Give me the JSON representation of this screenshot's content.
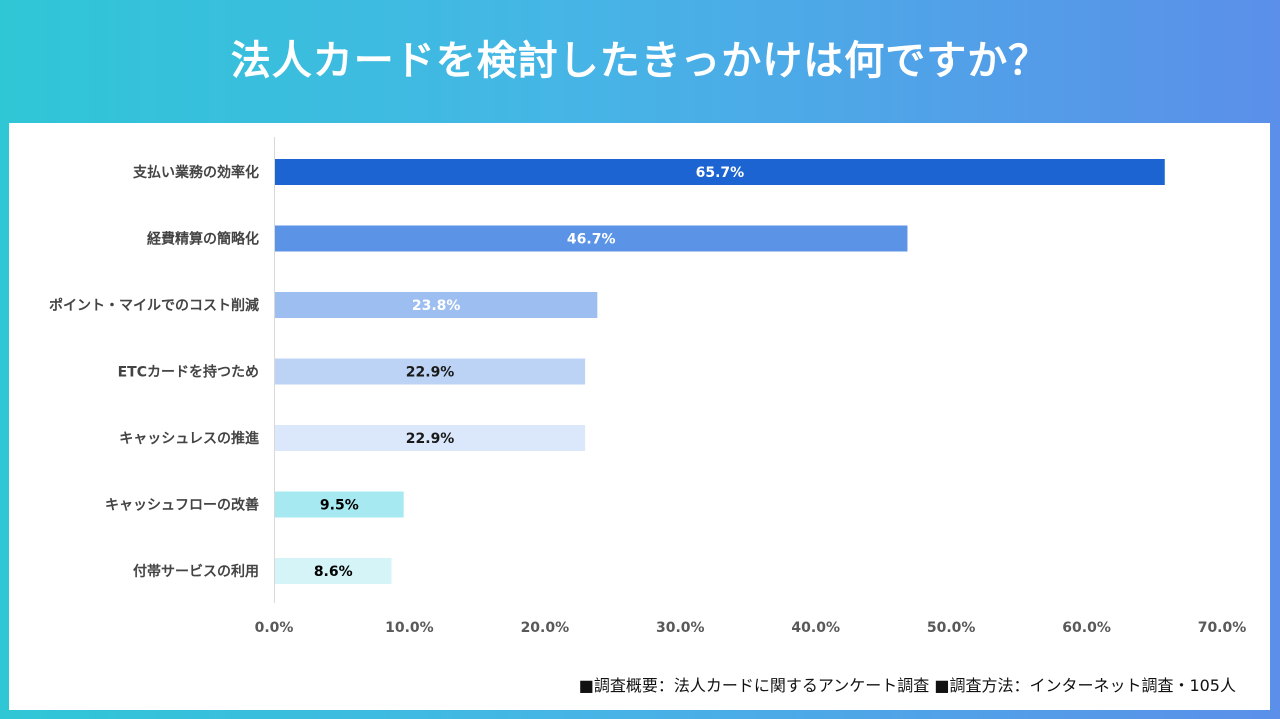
{
  "title": "法人カードを検討したきっかけは何ですか？",
  "footnote": "■調査概要：法人カードに関するアンケート調査 ■調査方法：インターネット調査・105人",
  "chart_data": {
    "type": "bar",
    "orientation": "horizontal",
    "title": "法人カードを検討したきっかけは何ですか？",
    "categories": [
      "支払い業務の効率化",
      "経費精算の簡略化",
      "ポイント・マイルでのコスト削減",
      "ETCカードを持つため",
      "キャッシュレスの推進",
      "キャッシュフローの改善",
      "付帯サービスの利用"
    ],
    "values": [
      65.7,
      46.7,
      23.8,
      22.9,
      22.9,
      9.5,
      8.6
    ],
    "value_labels": [
      "65.7%",
      "46.7%",
      "23.8%",
      "22.9%",
      "22.9%",
      "9.5%",
      "8.6%"
    ],
    "bar_colors": [
      "#1c64d2",
      "#5b93e6",
      "#9dbef1",
      "#bcd3f5",
      "#dbe7fa",
      "#a7e9f0",
      "#d4f4f7"
    ],
    "label_colors": [
      "#ffffff",
      "#ffffff",
      "#ffffff",
      "#1a1a1a",
      "#1a1a1a",
      "#000000",
      "#000000"
    ],
    "xlim": [
      0,
      70
    ],
    "xticks": [
      0,
      10,
      20,
      30,
      40,
      50,
      60,
      70
    ],
    "xtick_labels": [
      "0.0%",
      "10.0%",
      "20.0%",
      "30.0%",
      "40.0%",
      "50.0%",
      "60.0%",
      "70.0%"
    ],
    "xlabel": "",
    "ylabel": "",
    "grid": false,
    "legend": "none"
  }
}
